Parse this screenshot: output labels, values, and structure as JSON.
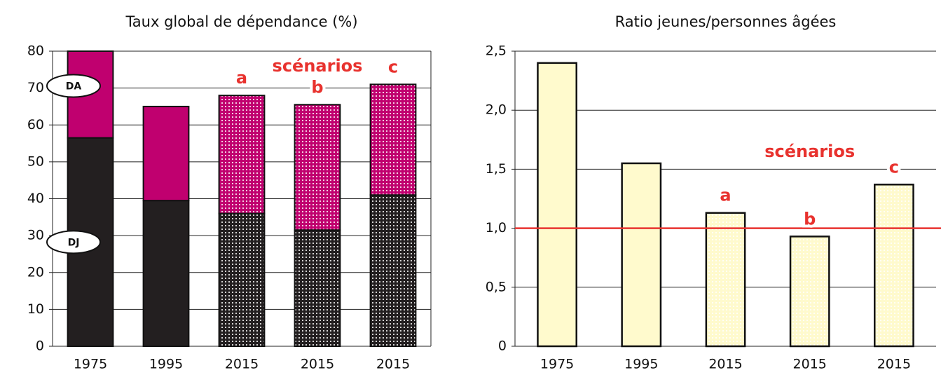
{
  "chart_data": [
    {
      "type": "stacked_bar",
      "title": "Taux global de dépendance (%)",
      "categories": [
        "1975",
        "1995",
        "2015",
        "2015",
        "2015"
      ],
      "series": [
        {
          "name": "DJ",
          "color": "#231f20",
          "values": [
            56.5,
            39.5,
            36,
            31.5,
            41
          ]
        },
        {
          "name": "DA",
          "color": "#c0006f",
          "values": [
            23.5,
            25.5,
            32,
            34,
            30
          ]
        }
      ],
      "ylim": [
        0,
        80
      ],
      "yticks": [
        0,
        10,
        20,
        30,
        40,
        50,
        60,
        70,
        80
      ],
      "grid": true,
      "scenario_label": "scénarios",
      "scenario_letters": [
        "a",
        "b",
        "c"
      ],
      "annotation_color": "#e8322e"
    },
    {
      "type": "bar",
      "title": "Ratio jeunes/personnes âgées",
      "categories": [
        "1975",
        "1995",
        "2015",
        "2015",
        "2015"
      ],
      "values": [
        2.4,
        1.55,
        1.13,
        0.93,
        1.37
      ],
      "color": "#fffacd",
      "ylim": [
        0,
        2.5
      ],
      "yticks": [
        0,
        {
          "value": 0.5,
          "label": "0,5"
        },
        {
          "value": 1,
          "label": "1,0"
        },
        {
          "value": 1.5,
          "label": "1,5"
        },
        {
          "value": 2,
          "label": "2,0"
        },
        {
          "value": 2.5,
          "label": "2,5"
        }
      ],
      "grid": true,
      "reference_line": 1,
      "reference_color": "#e8322e",
      "scenario_label": "scénarios",
      "scenario_letters": [
        "a",
        "b",
        "c"
      ],
      "annotation_color": "#e8322e"
    }
  ]
}
